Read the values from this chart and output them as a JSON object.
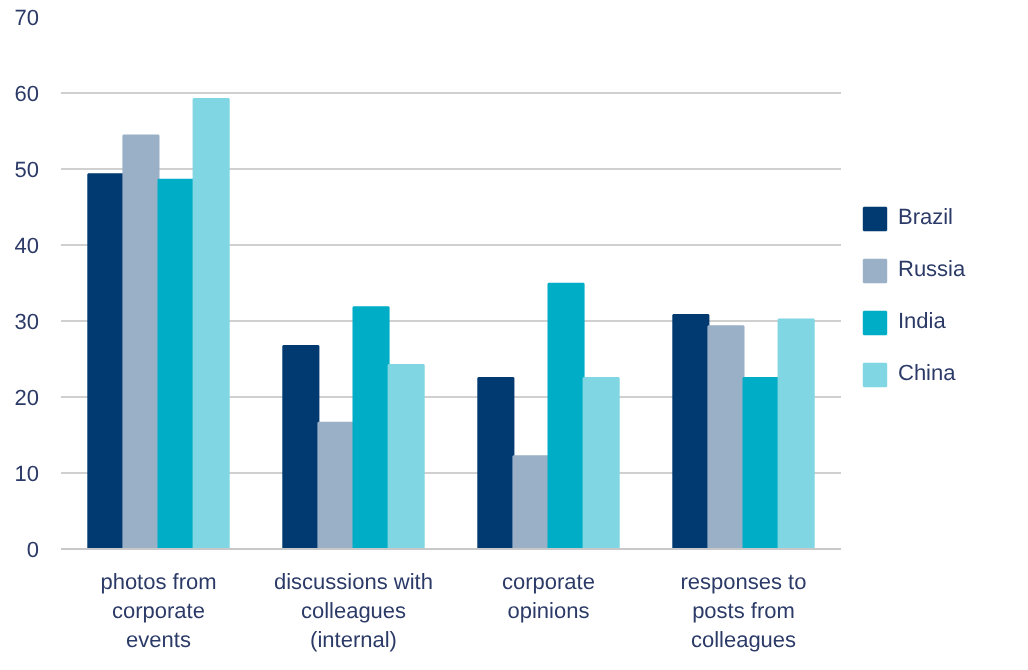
{
  "chart_data": {
    "type": "bar",
    "categories": [
      "photos from\ncorporate\nevents",
      "discussions with\ncolleagues\n(internal)",
      "corporate\nopinions",
      "responses to\nposts from\ncolleagues"
    ],
    "series": [
      {
        "name": "Brazil",
        "color": "#003a70",
        "values": [
          49.3,
          26.7,
          22.5,
          30.8
        ]
      },
      {
        "name": "Russia",
        "color": "#9ab0c7",
        "values": [
          54.4,
          16.6,
          12.2,
          29.3
        ]
      },
      {
        "name": "India",
        "color": "#00adc6",
        "values": [
          48.6,
          31.8,
          34.9,
          22.5
        ]
      },
      {
        "name": "China",
        "color": "#80d6e2",
        "values": [
          59.2,
          24.2,
          22.5,
          30.2
        ]
      }
    ],
    "ylim": [
      0,
      70
    ],
    "yticks": [
      0,
      10,
      20,
      30,
      40,
      50,
      60,
      70
    ],
    "grid": "y",
    "legend": "right"
  }
}
